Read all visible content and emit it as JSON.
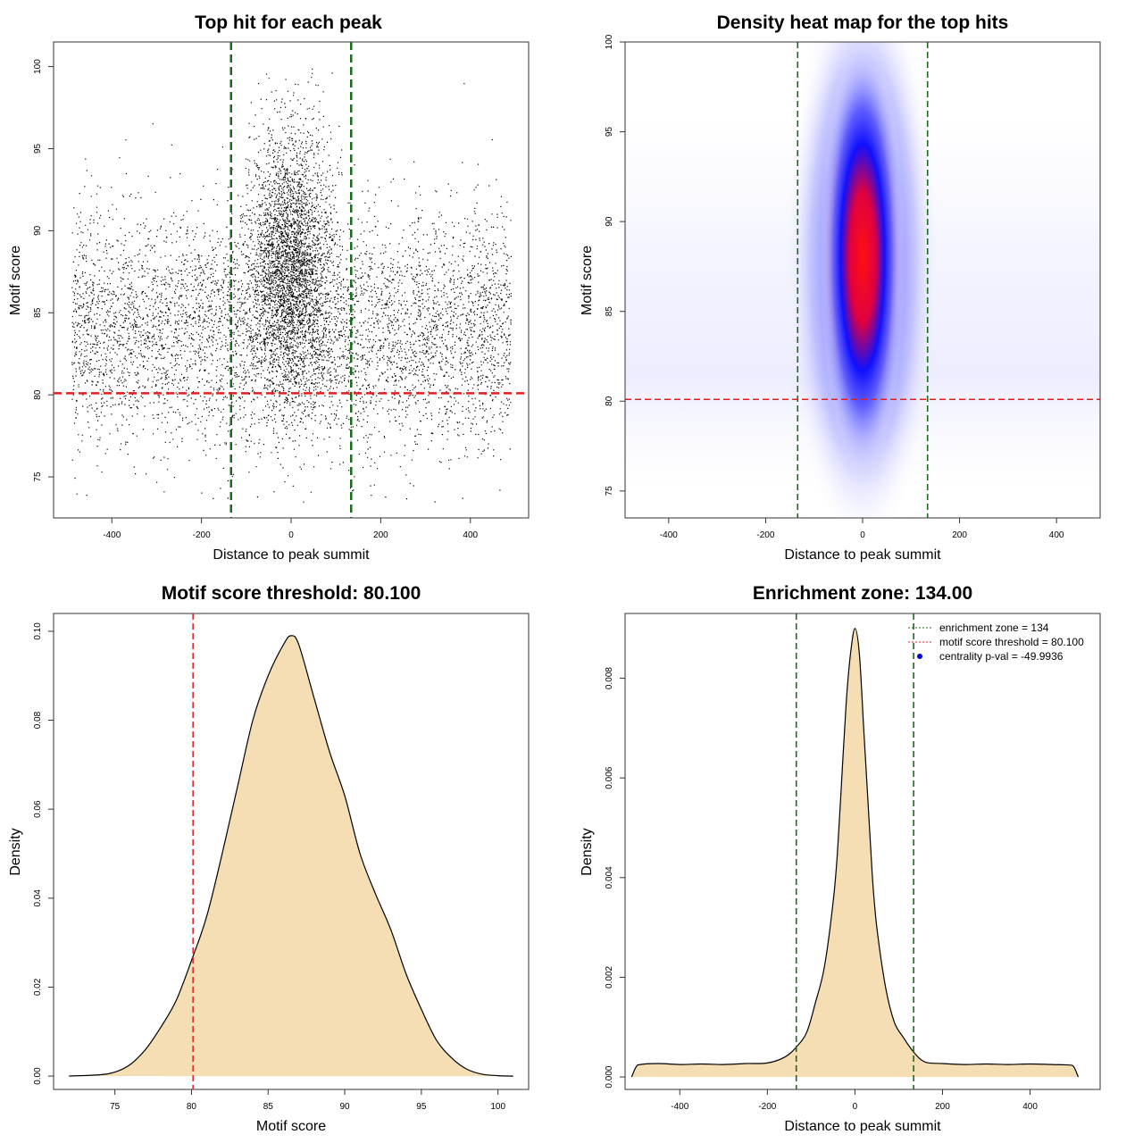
{
  "colors": {
    "threshold_line": "#e02020",
    "zone_line": "#1a6b1a",
    "density_fill": "#f5deb3",
    "centrality_point": "#0000cc"
  },
  "chart_data": [
    {
      "type": "scatter",
      "title": "Top hit for each peak",
      "xlabel": "Distance to peak summit",
      "ylabel": "Motif score",
      "xlim": [
        -530,
        530
      ],
      "ylim": [
        72.5,
        101.5
      ],
      "xticks": [
        -400,
        -200,
        0,
        200,
        400
      ],
      "yticks": [
        75,
        80,
        85,
        90,
        95,
        100
      ],
      "xtick_labels": [
        "-400",
        "-200",
        "0",
        "200",
        "400"
      ],
      "ytick_labels": [
        "75",
        "80",
        "85",
        "90",
        "95",
        "100"
      ],
      "threshold": 80.1,
      "zone": [
        -134,
        134
      ],
      "x_range": [
        -490,
        490
      ],
      "central_center": 0,
      "central_sd": 45,
      "central_score_mean": 88,
      "central_score_sd": 4,
      "background_score_mean": 84,
      "background_score_sd": 3.5
    },
    {
      "type": "heatmap",
      "title": "Density heat map for the top hits",
      "xlabel": "Distance to peak summit",
      "ylabel": "Motif score",
      "xlim": [
        -490,
        490
      ],
      "ylim": [
        73.5,
        100
      ],
      "xticks": [
        -400,
        -200,
        0,
        200,
        400
      ],
      "yticks": [
        75,
        80,
        85,
        90,
        95,
        100
      ],
      "xtick_labels": [
        "-400",
        "-200",
        "0",
        "200",
        "400"
      ],
      "ytick_labels": [
        "75",
        "80",
        "85",
        "90",
        "95",
        "100"
      ],
      "threshold": 80.1,
      "zone": [
        -134,
        134
      ],
      "peak_center": [
        0,
        88
      ],
      "peak_spread": [
        22,
        3.8
      ],
      "colormap": [
        "#ffffff",
        "#0000ff",
        "#ff0000"
      ]
    },
    {
      "type": "area",
      "title": "Motif score threshold: 80.100",
      "xlabel": "Motif score",
      "ylabel": "Density",
      "xlim": [
        71,
        102
      ],
      "ylim": [
        -0.003,
        0.104
      ],
      "xticks": [
        75,
        80,
        85,
        90,
        95,
        100
      ],
      "yticks": [
        0,
        0.02,
        0.04,
        0.06,
        0.08,
        0.1
      ],
      "xtick_labels": [
        "75",
        "80",
        "85",
        "90",
        "95",
        "100"
      ],
      "ytick_labels": [
        "0.00",
        "0.02",
        "0.04",
        "0.06",
        "0.08",
        "0.10"
      ],
      "threshold": 80.1,
      "x": [
        72,
        74,
        75,
        76,
        77,
        78,
        79,
        80,
        81,
        82,
        83,
        84,
        85,
        86,
        86.5,
        87,
        88,
        89,
        90,
        91,
        92,
        93,
        94,
        95,
        96,
        97,
        98,
        99,
        100,
        101
      ],
      "y": [
        0,
        0.0003,
        0.0009,
        0.0026,
        0.006,
        0.011,
        0.017,
        0.026,
        0.036,
        0.05,
        0.065,
        0.08,
        0.09,
        0.097,
        0.099,
        0.097,
        0.085,
        0.073,
        0.063,
        0.05,
        0.041,
        0.033,
        0.023,
        0.015,
        0.008,
        0.004,
        0.0015,
        0.0004,
        0.0001,
        0
      ]
    },
    {
      "type": "area",
      "title": "Enrichment zone: 134.00",
      "xlabel": "Distance to peak summit",
      "ylabel": "Density",
      "xlim": [
        -525,
        560
      ],
      "ylim": [
        -0.00025,
        0.0093
      ],
      "xticks": [
        -400,
        -200,
        0,
        200,
        400
      ],
      "yticks": [
        0,
        0.002,
        0.004,
        0.006,
        0.008
      ],
      "xtick_labels": [
        "-400",
        "-200",
        "0",
        "200",
        "400"
      ],
      "ytick_labels": [
        "0.000",
        "0.002",
        "0.004",
        "0.006",
        "0.008"
      ],
      "zone": [
        -134,
        134
      ],
      "x": [
        -510,
        -500,
        -490,
        -450,
        -400,
        -350,
        -300,
        -250,
        -200,
        -160,
        -134,
        -110,
        -90,
        -70,
        -50,
        -40,
        -30,
        -20,
        -10,
        0,
        10,
        20,
        30,
        40,
        50,
        70,
        90,
        110,
        134,
        160,
        200,
        250,
        300,
        350,
        400,
        450,
        490,
        500,
        510
      ],
      "y": [
        0,
        0.0002,
        0.00025,
        0.00027,
        0.00025,
        0.00026,
        0.00025,
        0.00027,
        0.00028,
        0.0004,
        0.0006,
        0.0009,
        0.0015,
        0.0022,
        0.0035,
        0.0045,
        0.006,
        0.0075,
        0.0085,
        0.009,
        0.0085,
        0.007,
        0.0055,
        0.004,
        0.003,
        0.0018,
        0.0011,
        0.0008,
        0.0005,
        0.0003,
        0.00027,
        0.00025,
        0.00026,
        0.00025,
        0.00026,
        0.00025,
        0.00024,
        0.0002,
        0
      ],
      "legend": [
        "enrichment zone = 134",
        "motif score threshold = 80.100",
        "centrality p-val = -49.9936"
      ]
    }
  ]
}
